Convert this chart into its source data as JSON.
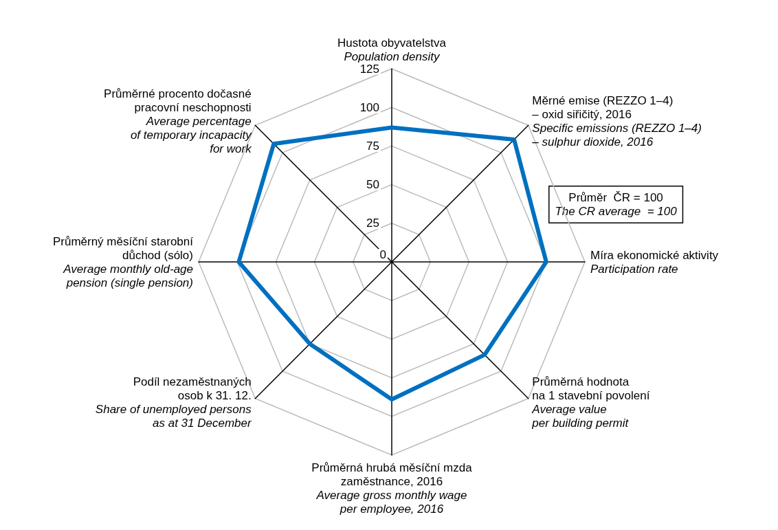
{
  "chart_data": {
    "type": "radar",
    "categories": [
      "Hustota obyvatelstva\n\nPopulation density",
      "Měrné emise (REZZO 1–4)\n– oxid siřičitý, 2016\n\nSpecific emissions (REZZO 1–4)\n– sulphur dioxide, 2016",
      "Míra ekonomické aktivity\n\nParticipation rate",
      "Průměrná hodnota\nna 1 stavební povolení\n\nAverage value\nper building permit",
      "Průměrná hrubá měsíční mzda\nzaměstnance, 2016\n\nAverage gross monthly wage\nper employee, 2016",
      "Podíl nezaměstnaných\nosob k 31. 12.\n\nShare of unemployed persons\nas at 31 December",
      "Průměrný měsíční starobní\ndůchod (sólo)\n\nAverage monthly old-age\npension (single pension)",
      "Průměrné procento dočasné\npracovní neschopnosti\n\nAverage percentage\nof temporary incapacity\nfor work"
    ],
    "series": [
      {
        "color": "#0070c0",
        "values": [
          87,
          112,
          100,
          85,
          89,
          75,
          99,
          108
        ]
      }
    ],
    "ylim": [
      0,
      125
    ],
    "yticks": [
      0,
      25,
      50,
      75,
      100,
      125
    ],
    "marker": "none",
    "line_style": "solid",
    "annotations": [
      "Průměr  ČR = 100\n\nThe CR average  = 100"
    ]
  }
}
